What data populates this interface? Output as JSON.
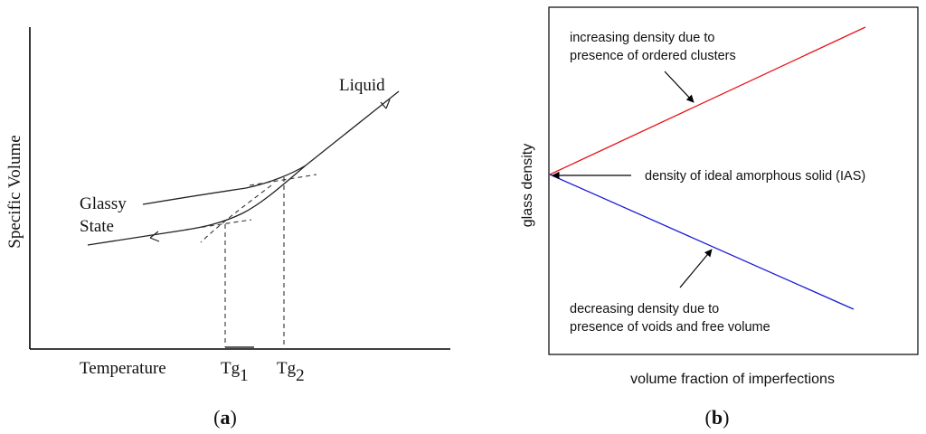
{
  "panel_a": {
    "caption_prefix": "(",
    "caption_letter": "a",
    "caption_suffix": ")",
    "y_axis_label": "Specific Volume",
    "x_axis_label": "Temperature",
    "label_liquid": "Liquid",
    "label_glassy": "Glassy",
    "label_state": "State",
    "tg1_main": "Tg",
    "tg1_sub": "1",
    "tg2_main": "Tg",
    "tg2_sub": "2"
  },
  "panel_b": {
    "caption_prefix": "(",
    "caption_letter": "b",
    "caption_suffix": ")",
    "y_axis_label": "glass density",
    "x_axis_label": "volume fraction of imperfections",
    "annotation_top_line1": "increasing density due to",
    "annotation_top_line2": "presence of ordered clusters",
    "annotation_middle": "density of ideal amorphous solid (IAS)",
    "annotation_bottom_line1": "decreasing density due to",
    "annotation_bottom_line2": "presence of voids and free volume",
    "colors": {
      "increasing_line": "#e8141a",
      "decreasing_line": "#1a1ad6",
      "frame": "#000000"
    }
  }
}
